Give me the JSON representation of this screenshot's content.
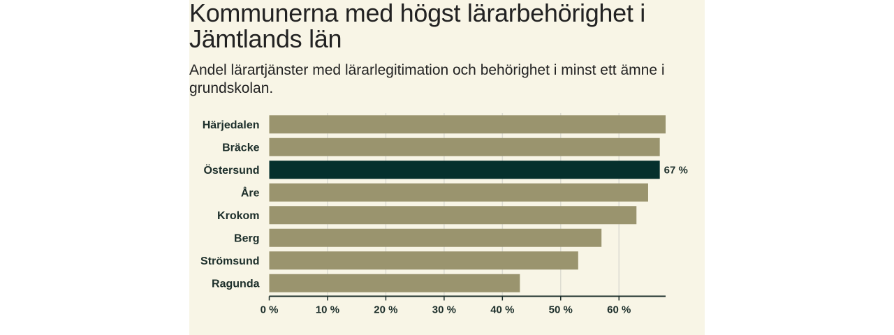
{
  "chart_data": {
    "type": "bar",
    "orientation": "horizontal",
    "title": "Kommunerna med högst lärarbehörighet i Jämtlands län",
    "subtitle": "Andel lärartjänster med lärarlegitimation och behörighet i minst ett ämne i grundskolan.",
    "categories": [
      "Härjedalen",
      "Bräcke",
      "Östersund",
      "Åre",
      "Krokom",
      "Berg",
      "Strömsund",
      "Ragunda"
    ],
    "values": [
      68,
      67,
      67,
      65,
      63,
      57,
      53,
      43
    ],
    "highlight": "Östersund",
    "data_labels": [
      {
        "category": "Östersund",
        "text": "67 %"
      }
    ],
    "xlim": [
      0,
      68
    ],
    "xticks": [
      0,
      10,
      20,
      30,
      40,
      50,
      60
    ],
    "xtick_labels": [
      "0 %",
      "10 %",
      "20 %",
      "30 %",
      "40 %",
      "50 %",
      "60 %"
    ],
    "grid": true,
    "colors": {
      "bar": "#9a946e",
      "highlight": "#05302d",
      "gridline": "#dddcd2",
      "axis": "#1c2e2a"
    }
  }
}
